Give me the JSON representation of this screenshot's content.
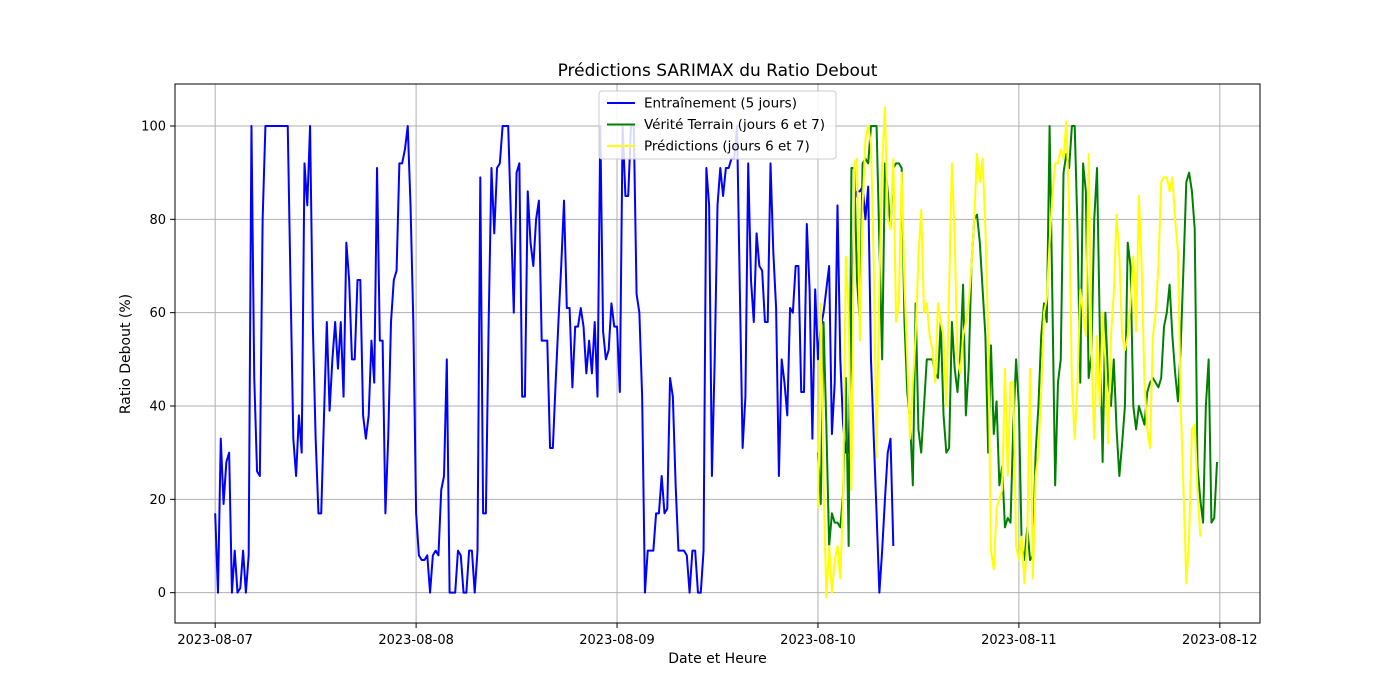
{
  "chart_data": {
    "type": "line",
    "title": "Prédictions SARIMAX du Ratio Debout",
    "xlabel": "Date et Heure",
    "ylabel": "Ratio Debout (%)",
    "xlim": [
      "2023-08-06 19:12",
      "2023-08-12 04:48"
    ],
    "ylim": [
      -6.5,
      109
    ],
    "grid": true,
    "legend_position": "top-center",
    "x_ticks": [
      "2023-08-07",
      "2023-08-08",
      "2023-08-09",
      "2023-08-10",
      "2023-08-11",
      "2023-08-12"
    ],
    "y_ticks": [
      0,
      20,
      40,
      60,
      80,
      100
    ],
    "series": [
      {
        "name": "Entraînement (5 jours)",
        "color": "#0000ff",
        "x_start": "2023-08-07 00:00",
        "step_minutes": 20,
        "values": [
          17,
          0,
          33,
          19,
          28,
          30,
          0,
          9,
          0,
          1,
          9,
          0,
          8,
          100,
          46,
          26,
          25,
          80,
          100,
          100,
          100,
          100,
          100,
          100,
          100,
          100,
          100,
          66,
          33,
          25,
          38,
          30,
          92,
          83,
          100,
          57,
          33,
          17,
          17,
          38,
          58,
          39,
          50,
          58,
          48,
          58,
          42,
          75,
          67,
          50,
          50,
          67,
          67,
          38,
          33,
          38,
          54,
          45,
          91,
          54,
          54,
          17,
          33,
          58,
          67,
          69,
          92,
          92,
          95,
          100,
          83,
          58,
          17,
          8,
          7,
          7,
          8,
          0,
          8,
          9,
          8,
          22,
          25,
          50,
          0,
          0,
          0,
          9,
          8,
          0,
          0,
          9,
          9,
          0,
          9,
          89,
          17,
          17,
          58,
          91,
          77,
          91,
          92,
          100,
          100,
          100,
          80,
          60,
          90,
          92,
          42,
          42,
          86,
          75,
          70,
          80,
          84,
          54,
          54,
          54,
          31,
          31,
          45,
          58,
          70,
          84,
          61,
          61,
          44,
          57,
          57,
          61,
          57,
          47,
          54,
          47,
          58,
          42,
          100,
          56,
          50,
          52,
          62,
          57,
          57,
          43,
          100,
          85,
          85,
          100,
          100,
          64,
          60,
          42,
          0,
          9,
          9,
          9,
          17,
          17,
          25,
          17,
          18,
          46,
          42,
          23,
          9,
          9,
          9,
          8,
          0,
          9,
          9,
          0,
          0,
          9,
          91,
          83,
          25,
          50,
          83,
          91,
          85,
          91,
          91,
          93,
          93,
          100,
          65,
          31,
          42,
          92,
          67,
          58,
          77,
          70,
          69,
          58,
          58,
          92,
          73,
          61,
          25,
          50,
          45,
          38,
          61,
          60,
          70,
          70,
          43,
          43,
          79,
          65,
          33,
          65,
          50,
          57,
          60,
          65,
          70,
          34,
          45,
          83,
          50,
          36,
          30,
          30,
          57,
          84,
          86,
          86,
          87,
          80,
          87,
          50,
          33,
          17,
          0,
          9,
          20,
          30,
          33,
          10
        ]
      },
      {
        "name": "Vérité Terrain (jours 6 et 7)",
        "color": "#008000",
        "x_start": "2023-08-10 00:00",
        "step_minutes": 20,
        "values": [
          30,
          19,
          58,
          36,
          10,
          17,
          15,
          15,
          14,
          21,
          46,
          10,
          91,
          91,
          67,
          58,
          92,
          93,
          92,
          100,
          100,
          100,
          75,
          50,
          92,
          86,
          78,
          91,
          92,
          92,
          91,
          58,
          43,
          37,
          23,
          62,
          35,
          30,
          40,
          50,
          50,
          50,
          47,
          46,
          58,
          38,
          30,
          31,
          58,
          48,
          43,
          51,
          66,
          38,
          48,
          70,
          80,
          81,
          75,
          65,
          55,
          30,
          53,
          34,
          41,
          23,
          27,
          14,
          16,
          15,
          36,
          50,
          40,
          10,
          7,
          14,
          7,
          8,
          30,
          40,
          55,
          62,
          58,
          100,
          63,
          23,
          45,
          50,
          90,
          94,
          91,
          100,
          100,
          78,
          45,
          92,
          86,
          46,
          51,
          80,
          91,
          56,
          28,
          60,
          45,
          40,
          50,
          35,
          25,
          32,
          40,
          75,
          70,
          40,
          35,
          40,
          38,
          36,
          43,
          45,
          46,
          45,
          44,
          46,
          57,
          60,
          66,
          55,
          47,
          41,
          53,
          70,
          88,
          90,
          86,
          78,
          27,
          20,
          15,
          40,
          50,
          15,
          16,
          28
        ]
      },
      {
        "name": "Prédictions (jours 6 et 7)",
        "color": "#ffff00",
        "x_start": "2023-08-10 00:00",
        "step_minutes": 20,
        "values": [
          18,
          62,
          24,
          -1,
          10,
          0,
          7,
          10,
          3,
          20,
          72,
          60,
          22,
          92,
          93,
          54,
          83,
          97,
          100,
          96,
          70,
          29,
          66,
          92,
          104,
          80,
          78,
          93,
          58,
          62,
          90,
          66,
          50,
          33,
          45,
          55,
          72,
          82,
          60,
          62,
          55,
          52,
          45,
          62,
          58,
          55,
          40,
          65,
          92,
          76,
          50,
          47,
          55,
          58,
          62,
          70,
          80,
          94,
          88,
          93,
          78,
          55,
          9,
          5,
          18,
          20,
          22,
          48,
          25,
          45,
          45,
          10,
          7,
          12,
          2,
          11,
          48,
          3,
          25,
          30,
          43,
          60,
          63,
          75,
          85,
          92,
          92,
          95,
          93,
          101,
          82,
          45,
          33,
          45,
          65,
          60,
          55,
          94,
          52,
          33,
          55,
          40,
          60,
          50,
          32,
          55,
          64,
          81,
          72,
          55,
          52,
          55,
          62,
          72,
          56,
          85,
          70,
          45,
          35,
          31,
          55,
          60,
          70,
          88,
          89,
          89,
          86,
          89,
          80,
          73,
          40,
          22,
          2,
          12,
          35,
          36,
          22,
          12
        ]
      }
    ]
  }
}
